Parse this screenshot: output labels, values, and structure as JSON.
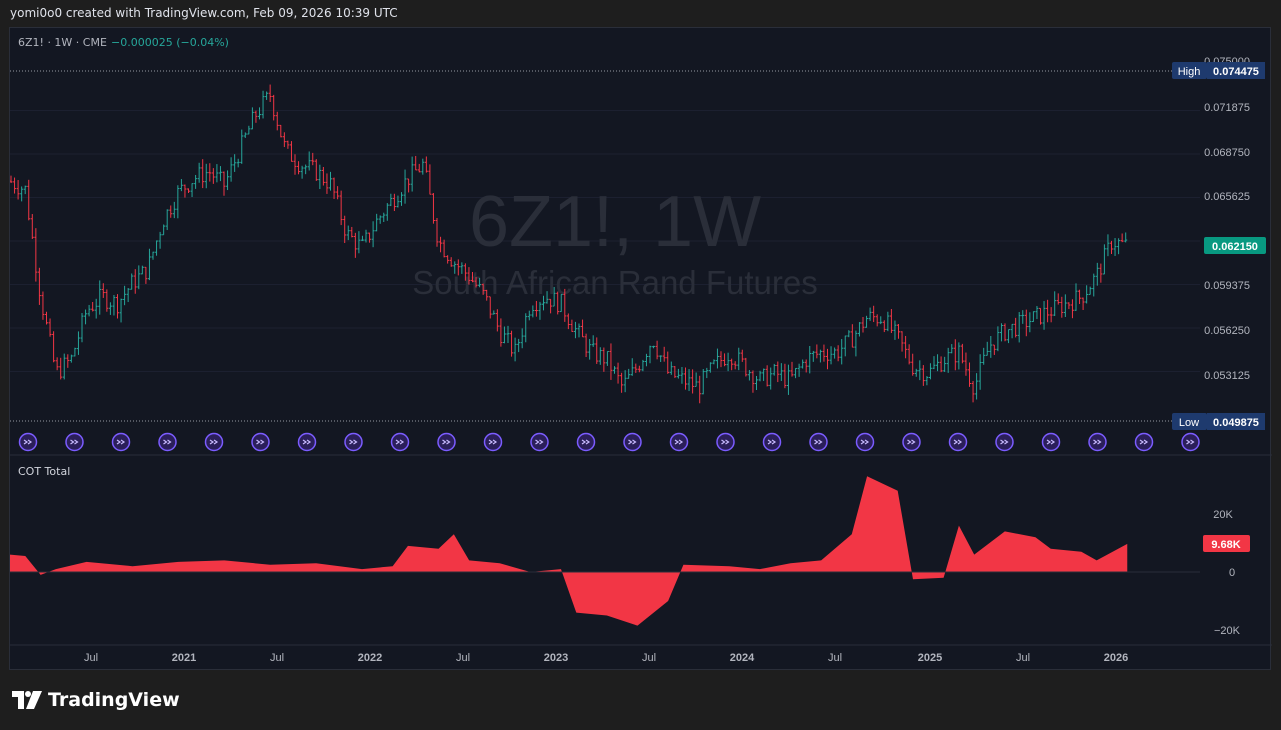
{
  "header": {
    "created_text": "yomi0o0 created with TradingView.com, Feb 09, 2026 10:39 UTC"
  },
  "legend": {
    "symbol_line": "6Z1! · 1W · CME",
    "change": "−0.000025 (−0.04%)"
  },
  "watermark": {
    "title": "6Z1!, 1W",
    "subtitle": "South African Rand Futures"
  },
  "price_axis": {
    "labels": [
      "0.075000",
      "0.071875",
      "0.068750",
      "0.065625",
      "0.059375",
      "0.056250",
      "0.053125"
    ],
    "high_label": "High",
    "high_value": "0.074475",
    "low_label": "Low",
    "low_value": "0.049875",
    "last_value": "0.062150"
  },
  "cot_pane": {
    "title": "COT Total",
    "axis_labels": [
      "20K",
      "0",
      "−20K"
    ],
    "last_value": "9.68K"
  },
  "time_axis": {
    "labels": [
      "Jul",
      "2021",
      "Jul",
      "2022",
      "Jul",
      "2023",
      "Jul",
      "2024",
      "Jul",
      "2025",
      "Jul",
      "2026"
    ]
  },
  "branding": {
    "logo_text": "TradingView"
  },
  "colors": {
    "up": "#26a69a",
    "down": "#f23645",
    "bg": "#131722",
    "event_icon": "#7b5cff"
  },
  "chart_data": [
    {
      "type": "candlestick",
      "title": "6Z1!, 1W",
      "subtitle": "South African Rand Futures",
      "timeframe": "weekly",
      "x_range": [
        "2020-01",
        "2026-02"
      ],
      "y_range": [
        0.0485,
        0.0755
      ],
      "high": 0.074475,
      "low": 0.049875,
      "last": 0.06215,
      "path": [
        [
          "2020-01",
          0.0668
        ],
        [
          "2020-02",
          0.0662
        ],
        [
          "2020-03",
          0.0585
        ],
        [
          "2020-04",
          0.053
        ],
        [
          "2020-05",
          0.054
        ],
        [
          "2020-06",
          0.0575
        ],
        [
          "2020-07",
          0.0585
        ],
        [
          "2020-08",
          0.058
        ],
        [
          "2020-09",
          0.0595
        ],
        [
          "2020-10",
          0.0605
        ],
        [
          "2020-11",
          0.064
        ],
        [
          "2020-12",
          0.066
        ],
        [
          "2021-01",
          0.067
        ],
        [
          "2021-02",
          0.0675
        ],
        [
          "2021-03",
          0.0665
        ],
        [
          "2021-04",
          0.069
        ],
        [
          "2021-05",
          0.0715
        ],
        [
          "2021-06",
          0.073
        ],
        [
          "2021-07",
          0.069
        ],
        [
          "2021-08",
          0.068
        ],
        [
          "2021-09",
          0.0675
        ],
        [
          "2021-10",
          0.0665
        ],
        [
          "2021-11",
          0.063
        ],
        [
          "2021-12",
          0.062
        ],
        [
          "2022-01",
          0.064
        ],
        [
          "2022-02",
          0.0655
        ],
        [
          "2022-03",
          0.067
        ],
        [
          "2022-04",
          0.068
        ],
        [
          "2022-05",
          0.0625
        ],
        [
          "2022-06",
          0.061
        ],
        [
          "2022-07",
          0.06
        ],
        [
          "2022-08",
          0.0585
        ],
        [
          "2022-09",
          0.056
        ],
        [
          "2022-10",
          0.0545
        ],
        [
          "2022-11",
          0.058
        ],
        [
          "2022-12",
          0.0585
        ],
        [
          "2023-01",
          0.058
        ],
        [
          "2023-02",
          0.056
        ],
        [
          "2023-03",
          0.0545
        ],
        [
          "2023-04",
          0.054
        ],
        [
          "2023-05",
          0.052
        ],
        [
          "2023-06",
          0.0535
        ],
        [
          "2023-07",
          0.0555
        ],
        [
          "2023-08",
          0.053
        ],
        [
          "2023-09",
          0.0525
        ],
        [
          "2023-10",
          0.052
        ],
        [
          "2023-11",
          0.0535
        ],
        [
          "2023-12",
          0.0545
        ],
        [
          "2024-01",
          0.0535
        ],
        [
          "2024-02",
          0.0525
        ],
        [
          "2024-03",
          0.053
        ],
        [
          "2024-04",
          0.0525
        ],
        [
          "2024-05",
          0.054
        ],
        [
          "2024-06",
          0.0545
        ],
        [
          "2024-07",
          0.0545
        ],
        [
          "2024-08",
          0.0555
        ],
        [
          "2024-09",
          0.057
        ],
        [
          "2024-10",
          0.057
        ],
        [
          "2024-11",
          0.0555
        ],
        [
          "2024-12",
          0.0535
        ],
        [
          "2025-01",
          0.053
        ],
        [
          "2025-02",
          0.054
        ],
        [
          "2025-03",
          0.0545
        ],
        [
          "2025-04",
          0.052
        ],
        [
          "2025-05",
          0.055
        ],
        [
          "2025-06",
          0.056
        ],
        [
          "2025-07",
          0.0565
        ],
        [
          "2025-08",
          0.057
        ],
        [
          "2025-09",
          0.0575
        ],
        [
          "2025-10",
          0.058
        ],
        [
          "2025-11",
          0.0585
        ],
        [
          "2025-12",
          0.06
        ],
        [
          "2026-01",
          0.0625
        ],
        [
          "2026-02",
          0.06215
        ]
      ]
    },
    {
      "type": "area",
      "title": "COT Total",
      "y_range": [
        -25000,
        35000
      ],
      "last": 9680,
      "path": [
        [
          "2020-01",
          6000
        ],
        [
          "2020-02",
          5500
        ],
        [
          "2020-03",
          -1000
        ],
        [
          "2020-04",
          1000
        ],
        [
          "2020-06",
          3500
        ],
        [
          "2020-09",
          2000
        ],
        [
          "2020-12",
          3500
        ],
        [
          "2021-03",
          4000
        ],
        [
          "2021-06",
          2500
        ],
        [
          "2021-09",
          3000
        ],
        [
          "2021-12",
          1000
        ],
        [
          "2022-02",
          2000
        ],
        [
          "2022-03",
          9000
        ],
        [
          "2022-05",
          8000
        ],
        [
          "2022-06",
          13000
        ],
        [
          "2022-07",
          4000
        ],
        [
          "2022-09",
          3000
        ],
        [
          "2022-11",
          0
        ],
        [
          "2023-01",
          1000
        ],
        [
          "2023-02",
          -14000
        ],
        [
          "2023-04",
          -15000
        ],
        [
          "2023-06",
          -18500
        ],
        [
          "2023-08",
          -10000
        ],
        [
          "2023-09",
          2500
        ],
        [
          "2023-12",
          2000
        ],
        [
          "2024-02",
          1000
        ],
        [
          "2024-04",
          3000
        ],
        [
          "2024-06",
          4000
        ],
        [
          "2024-08",
          13000
        ],
        [
          "2024-09",
          33000
        ],
        [
          "2024-11",
          28000
        ],
        [
          "2024-12",
          -2500
        ],
        [
          "2025-02",
          -2000
        ],
        [
          "2025-03",
          16000
        ],
        [
          "2025-04",
          6000
        ],
        [
          "2025-06",
          14000
        ],
        [
          "2025-08",
          12000
        ],
        [
          "2025-09",
          8000
        ],
        [
          "2025-11",
          7000
        ],
        [
          "2025-12",
          4000
        ],
        [
          "2026-02",
          9680
        ]
      ]
    }
  ]
}
